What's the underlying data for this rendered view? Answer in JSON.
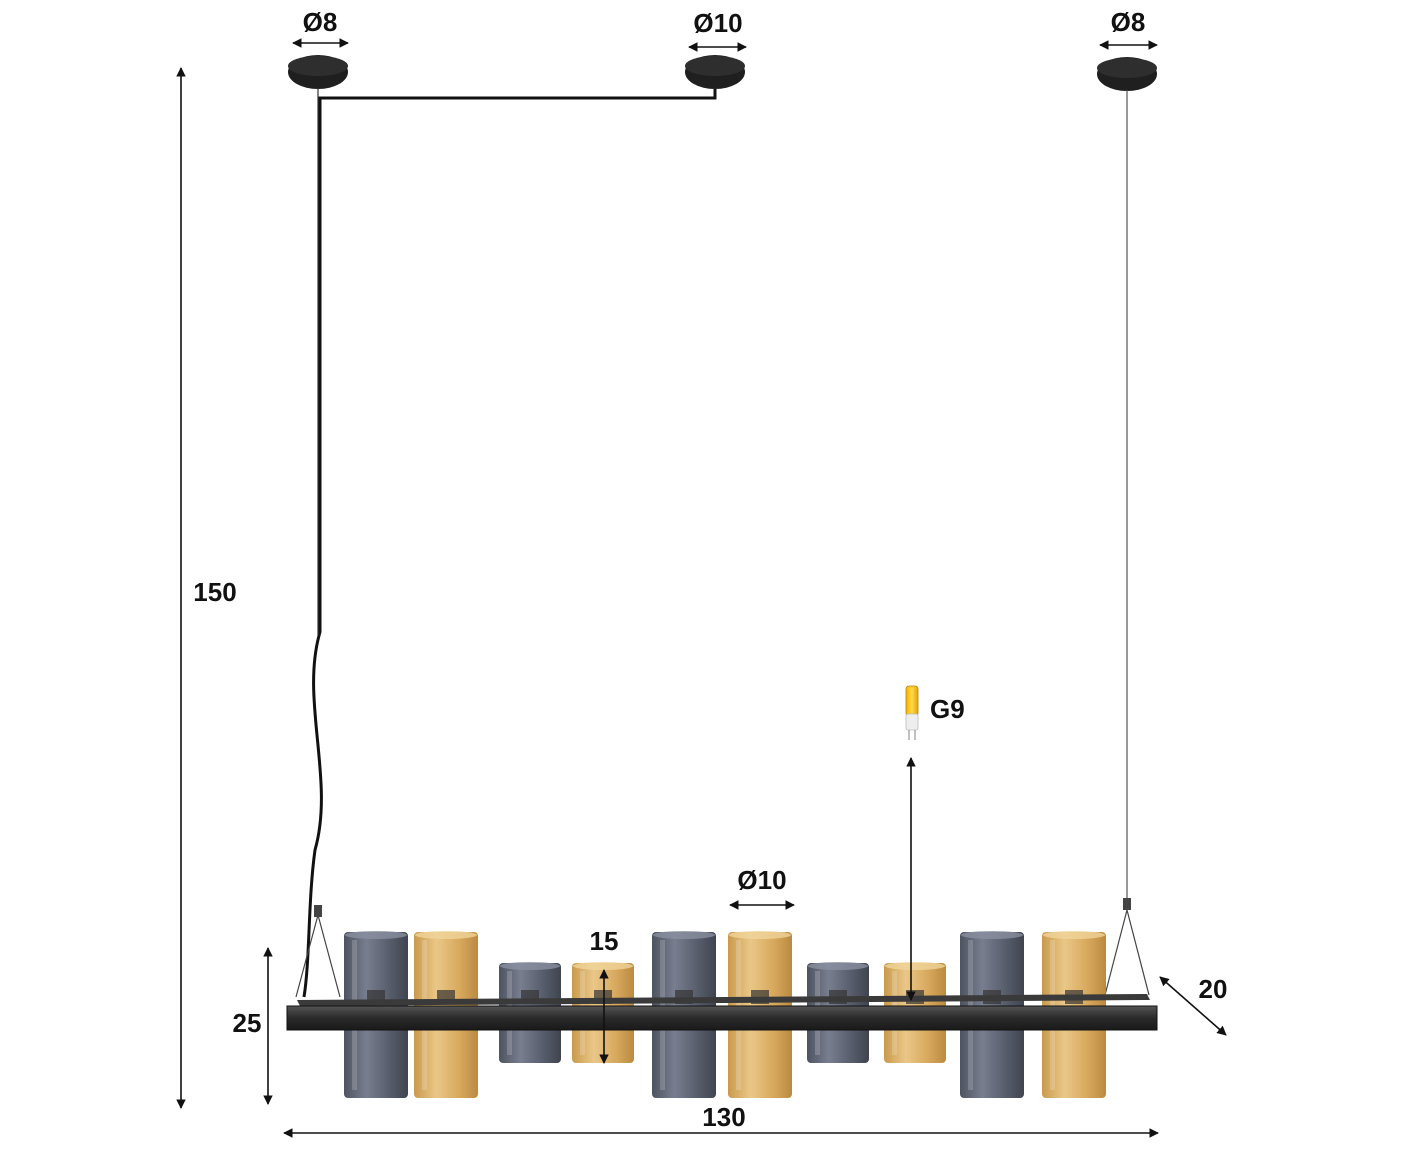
{
  "dimensions": {
    "ceiling_left_diameter": "Ø8",
    "ceiling_middle_diameter": "Ø10",
    "ceiling_right_diameter": "Ø8",
    "total_height": "150",
    "fixture_height": "25",
    "total_width": "130",
    "depth": "20",
    "shade_diameter": "Ø10",
    "short_shade_height": "15"
  },
  "bulb": {
    "label": "G9"
  },
  "colors": {
    "smoke_glass": "#5a6170",
    "amber_glass": "#d9a852",
    "metal": "#2b2b2b",
    "dimension_line": "#111111"
  },
  "shades": [
    {
      "color": "smoke",
      "size": "tall"
    },
    {
      "color": "amber",
      "size": "tall"
    },
    {
      "color": "smoke",
      "size": "short"
    },
    {
      "color": "amber",
      "size": "short"
    },
    {
      "color": "smoke",
      "size": "tall"
    },
    {
      "color": "amber",
      "size": "tall"
    },
    {
      "color": "smoke",
      "size": "short"
    },
    {
      "color": "amber",
      "size": "short"
    },
    {
      "color": "smoke",
      "size": "tall"
    },
    {
      "color": "amber",
      "size": "tall"
    }
  ]
}
